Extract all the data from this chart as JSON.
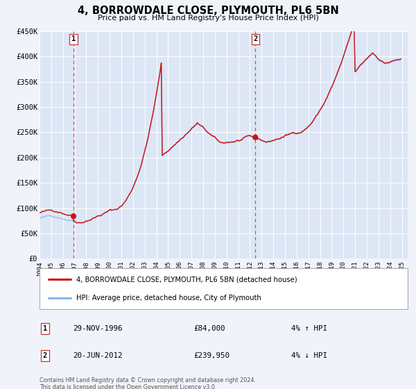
{
  "title": "4, BORROWDALE CLOSE, PLYMOUTH, PL6 5BN",
  "subtitle": "Price paid vs. HM Land Registry's House Price Index (HPI)",
  "bg_color": "#f0f4fa",
  "plot_bg_color": "#dde6f5",
  "grid_color": "#ffffff",
  "red_line_color": "#cc1111",
  "blue_line_color": "#88b8e8",
  "marker_color": "#cc1111",
  "vline_color": "#cc3333",
  "ylim": [
    0,
    450000
  ],
  "xlim_start": 1994.0,
  "xlim_end": 2025.5,
  "ytick_labels": [
    "£0",
    "£50K",
    "£100K",
    "£150K",
    "£200K",
    "£250K",
    "£300K",
    "£350K",
    "£400K",
    "£450K"
  ],
  "ytick_values": [
    0,
    50000,
    100000,
    150000,
    200000,
    250000,
    300000,
    350000,
    400000,
    450000
  ],
  "sale1_x": 1996.91,
  "sale1_y": 84000,
  "sale2_x": 2012.47,
  "sale2_y": 239950,
  "legend1": "4, BORROWDALE CLOSE, PLYMOUTH, PL6 5BN (detached house)",
  "legend2": "HPI: Average price, detached house, City of Plymouth",
  "ann1_date": "29-NOV-1996",
  "ann1_price": "£84,000",
  "ann1_hpi": "4% ↑ HPI",
  "ann2_date": "20-JUN-2012",
  "ann2_price": "£239,950",
  "ann2_hpi": "4% ↓ HPI",
  "footer1": "Contains HM Land Registry data © Crown copyright and database right 2024.",
  "footer2": "This data is licensed under the Open Government Licence v3.0."
}
